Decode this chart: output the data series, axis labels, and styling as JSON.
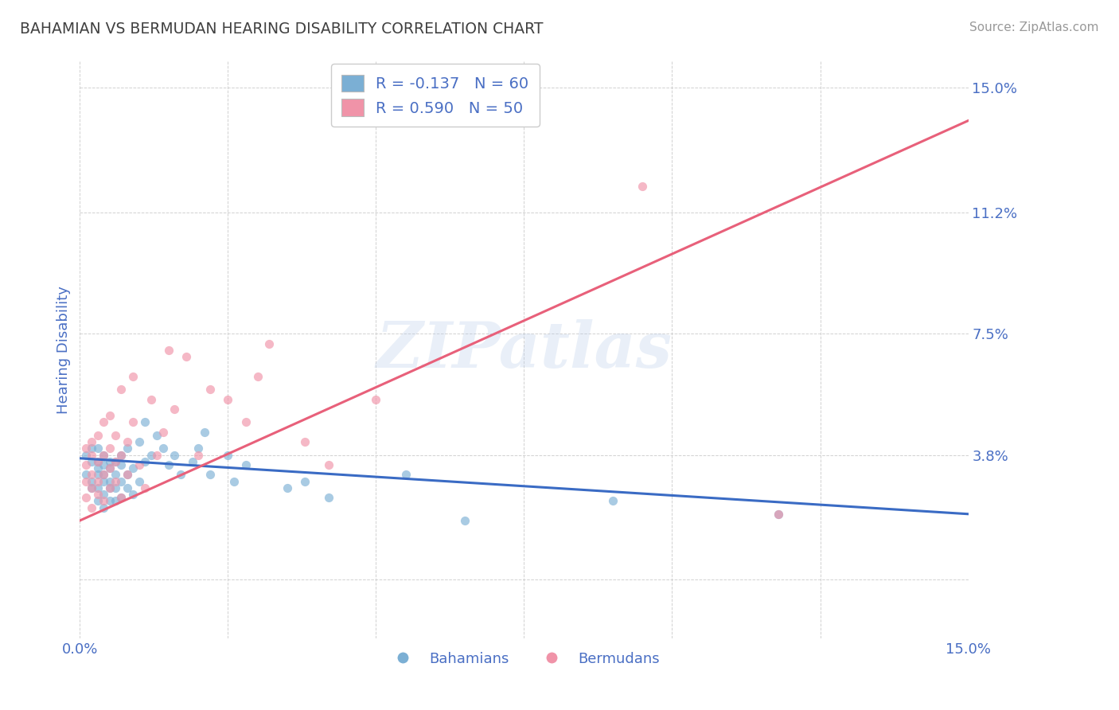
{
  "title": "BAHAMIAN VS BERMUDAN HEARING DISABILITY CORRELATION CHART",
  "source": "Source: ZipAtlas.com",
  "ylabel": "Hearing Disability",
  "xlim": [
    0.0,
    0.15
  ],
  "ylim": [
    -0.018,
    0.158
  ],
  "background_color": "#ffffff",
  "grid_color": "#cccccc",
  "title_color": "#404040",
  "watermark": "ZIPatlas",
  "legend_r_blue": "R = -0.137",
  "legend_n_blue": "N = 60",
  "legend_r_pink": "R = 0.590",
  "legend_n_pink": "N = 50",
  "blue_color": "#7bafd4",
  "pink_color": "#f093a8",
  "line_blue_color": "#3a6bc4",
  "line_pink_color": "#e8607a",
  "axis_label_color": "#4a6fc4",
  "blue_line_start_y": 0.037,
  "blue_line_end_y": 0.02,
  "pink_line_start_y": 0.018,
  "pink_line_end_y": 0.14,
  "bahamian_x": [
    0.001,
    0.001,
    0.002,
    0.002,
    0.002,
    0.002,
    0.003,
    0.003,
    0.003,
    0.003,
    0.003,
    0.003,
    0.004,
    0.004,
    0.004,
    0.004,
    0.004,
    0.004,
    0.005,
    0.005,
    0.005,
    0.005,
    0.005,
    0.006,
    0.006,
    0.006,
    0.006,
    0.007,
    0.007,
    0.007,
    0.007,
    0.008,
    0.008,
    0.008,
    0.009,
    0.009,
    0.01,
    0.01,
    0.011,
    0.011,
    0.012,
    0.013,
    0.014,
    0.015,
    0.016,
    0.017,
    0.019,
    0.02,
    0.021,
    0.022,
    0.025,
    0.026,
    0.028,
    0.035,
    0.038,
    0.042,
    0.055,
    0.065,
    0.09,
    0.118
  ],
  "bahamian_y": [
    0.038,
    0.032,
    0.036,
    0.03,
    0.028,
    0.04,
    0.034,
    0.028,
    0.032,
    0.036,
    0.024,
    0.04,
    0.026,
    0.032,
    0.035,
    0.038,
    0.03,
    0.022,
    0.034,
    0.028,
    0.036,
    0.03,
    0.024,
    0.032,
    0.028,
    0.036,
    0.024,
    0.035,
    0.03,
    0.025,
    0.038,
    0.032,
    0.028,
    0.04,
    0.034,
    0.026,
    0.042,
    0.03,
    0.048,
    0.036,
    0.038,
    0.044,
    0.04,
    0.035,
    0.038,
    0.032,
    0.036,
    0.04,
    0.045,
    0.032,
    0.038,
    0.03,
    0.035,
    0.028,
    0.03,
    0.025,
    0.032,
    0.018,
    0.024,
    0.02
  ],
  "bermudan_x": [
    0.001,
    0.001,
    0.001,
    0.001,
    0.002,
    0.002,
    0.002,
    0.002,
    0.002,
    0.003,
    0.003,
    0.003,
    0.003,
    0.004,
    0.004,
    0.004,
    0.004,
    0.005,
    0.005,
    0.005,
    0.005,
    0.006,
    0.006,
    0.006,
    0.007,
    0.007,
    0.007,
    0.008,
    0.008,
    0.009,
    0.009,
    0.01,
    0.011,
    0.012,
    0.013,
    0.014,
    0.015,
    0.016,
    0.018,
    0.02,
    0.022,
    0.025,
    0.028,
    0.03,
    0.032,
    0.038,
    0.042,
    0.05,
    0.095,
    0.118
  ],
  "bermudan_y": [
    0.035,
    0.03,
    0.04,
    0.025,
    0.038,
    0.032,
    0.028,
    0.042,
    0.022,
    0.036,
    0.03,
    0.044,
    0.026,
    0.048,
    0.032,
    0.038,
    0.024,
    0.04,
    0.034,
    0.05,
    0.028,
    0.036,
    0.044,
    0.03,
    0.038,
    0.058,
    0.025,
    0.042,
    0.032,
    0.048,
    0.062,
    0.035,
    0.028,
    0.055,
    0.038,
    0.045,
    0.07,
    0.052,
    0.068,
    0.038,
    0.058,
    0.055,
    0.048,
    0.062,
    0.072,
    0.042,
    0.035,
    0.055,
    0.12,
    0.02
  ]
}
